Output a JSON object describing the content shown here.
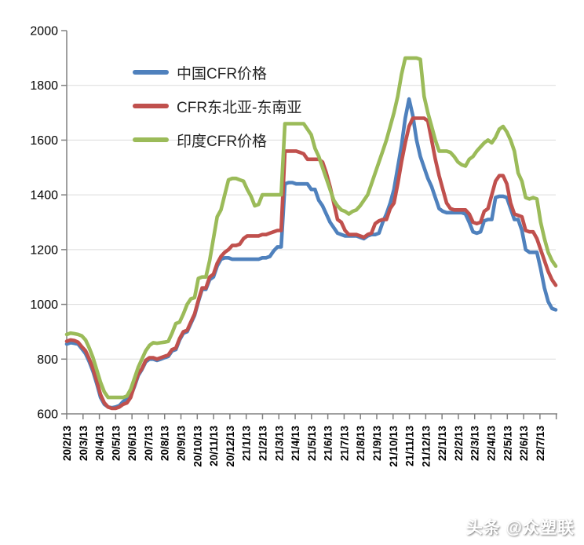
{
  "watermark": {
    "text": "头条 @众塑联"
  },
  "colors": {
    "axis": "#808080",
    "gridline": "#dcdcdc",
    "tick_label": "#000000",
    "background": "#ffffff"
  },
  "chart_data": {
    "type": "line",
    "title": "",
    "xlabel": "",
    "ylabel": "",
    "grid": true,
    "legend_position": "inside-top-left",
    "y_axis": {
      "min": 600,
      "max": 2000,
      "step": 200,
      "tick_labels": [
        "600",
        "800",
        "1000",
        "1200",
        "1400",
        "1600",
        "1800",
        "2000"
      ]
    },
    "x_axis": {
      "note": "monthly ticks, weekly data points (131 points span 30 labeled ticks plus overhang)",
      "ticks_total": 31,
      "weeks_per_tick": 4.338,
      "tick_labels": [
        "20/2/13",
        "20/3/13",
        "20/4/13",
        "20/5/13",
        "20/6/13",
        "20/7/13",
        "20/8/13",
        "20/9/13",
        "20/10/13",
        "20/11/13",
        "20/12/13",
        "21/1/13",
        "21/2/13",
        "21/3/13",
        "21/4/13",
        "21/5/13",
        "21/6/13",
        "21/7/13",
        "21/8/13",
        "21/9/13",
        "21/10/13",
        "21/11/13",
        "21/12/13",
        "22/1/13",
        "22/2/13",
        "22/3/13",
        "22/4/13",
        "22/5/13",
        "22/6/13",
        "22/7/13"
      ]
    },
    "series": [
      {
        "name": "中国CFR价格",
        "color": "#4f81bd",
        "values": [
          855,
          860,
          858,
          855,
          838,
          820,
          790,
          755,
          710,
          660,
          635,
          625,
          622,
          625,
          630,
          645,
          655,
          665,
          700,
          740,
          762,
          790,
          800,
          800,
          795,
          800,
          805,
          810,
          830,
          835,
          870,
          895,
          900,
          930,
          960,
          1010,
          1055,
          1055,
          1090,
          1100,
          1140,
          1165,
          1170,
          1170,
          1165,
          1165,
          1165,
          1165,
          1165,
          1165,
          1165,
          1165,
          1170,
          1170,
          1175,
          1195,
          1210,
          1210,
          1440,
          1445,
          1445,
          1440,
          1440,
          1440,
          1440,
          1420,
          1420,
          1380,
          1360,
          1330,
          1300,
          1280,
          1260,
          1255,
          1250,
          1250,
          1250,
          1250,
          1245,
          1240,
          1250,
          1255,
          1255,
          1260,
          1300,
          1330,
          1370,
          1420,
          1500,
          1580,
          1680,
          1750,
          1690,
          1600,
          1540,
          1500,
          1460,
          1430,
          1390,
          1350,
          1340,
          1335,
          1335,
          1335,
          1335,
          1335,
          1330,
          1300,
          1265,
          1260,
          1265,
          1305,
          1310,
          1310,
          1390,
          1395,
          1395,
          1390,
          1350,
          1310,
          1310,
          1270,
          1200,
          1190,
          1190,
          1190,
          1130,
          1060,
          1010,
          985,
          980
        ]
      },
      {
        "name": "CFR东北亚-东南亚",
        "color": "#c0504d",
        "values": [
          865,
          870,
          868,
          862,
          845,
          830,
          800,
          765,
          720,
          670,
          640,
          625,
          620,
          620,
          625,
          635,
          640,
          660,
          705,
          745,
          765,
          795,
          805,
          805,
          800,
          805,
          810,
          815,
          835,
          840,
          875,
          900,
          905,
          935,
          965,
          1015,
          1060,
          1060,
          1100,
          1110,
          1150,
          1175,
          1190,
          1200,
          1215,
          1215,
          1220,
          1240,
          1250,
          1250,
          1250,
          1250,
          1255,
          1255,
          1260,
          1265,
          1270,
          1270,
          1560,
          1560,
          1560,
          1560,
          1555,
          1550,
          1530,
          1530,
          1530,
          1530,
          1520,
          1480,
          1430,
          1370,
          1310,
          1300,
          1270,
          1255,
          1255,
          1255,
          1250,
          1245,
          1255,
          1260,
          1295,
          1305,
          1310,
          1310,
          1350,
          1370,
          1440,
          1520,
          1590,
          1650,
          1680,
          1680,
          1680,
          1680,
          1670,
          1600,
          1530,
          1470,
          1420,
          1370,
          1350,
          1345,
          1345,
          1345,
          1345,
          1330,
          1300,
          1295,
          1300,
          1340,
          1350,
          1400,
          1450,
          1470,
          1470,
          1440,
          1370,
          1330,
          1325,
          1320,
          1270,
          1265,
          1265,
          1240,
          1200,
          1160,
          1120,
          1090,
          1070
        ]
      },
      {
        "name": "印度CFR价格",
        "color": "#9bbb59",
        "values": [
          890,
          895,
          893,
          890,
          885,
          870,
          840,
          805,
          760,
          715,
          680,
          660,
          660,
          660,
          660,
          660,
          665,
          690,
          730,
          770,
          800,
          830,
          850,
          860,
          858,
          860,
          862,
          865,
          895,
          930,
          935,
          965,
          1000,
          1020,
          1025,
          1095,
          1100,
          1100,
          1160,
          1240,
          1320,
          1345,
          1400,
          1455,
          1460,
          1460,
          1455,
          1450,
          1420,
          1395,
          1360,
          1365,
          1400,
          1400,
          1400,
          1400,
          1400,
          1400,
          1660,
          1660,
          1660,
          1660,
          1660,
          1660,
          1640,
          1620,
          1570,
          1540,
          1500,
          1460,
          1420,
          1380,
          1360,
          1345,
          1340,
          1330,
          1340,
          1345,
          1360,
          1380,
          1400,
          1440,
          1480,
          1520,
          1560,
          1600,
          1650,
          1700,
          1760,
          1840,
          1900,
          1900,
          1900,
          1900,
          1895,
          1760,
          1700,
          1650,
          1600,
          1560,
          1560,
          1560,
          1555,
          1540,
          1520,
          1510,
          1505,
          1530,
          1540,
          1560,
          1575,
          1590,
          1600,
          1590,
          1610,
          1640,
          1650,
          1630,
          1600,
          1560,
          1480,
          1450,
          1390,
          1385,
          1390,
          1385,
          1300,
          1240,
          1190,
          1160,
          1140
        ]
      }
    ]
  }
}
